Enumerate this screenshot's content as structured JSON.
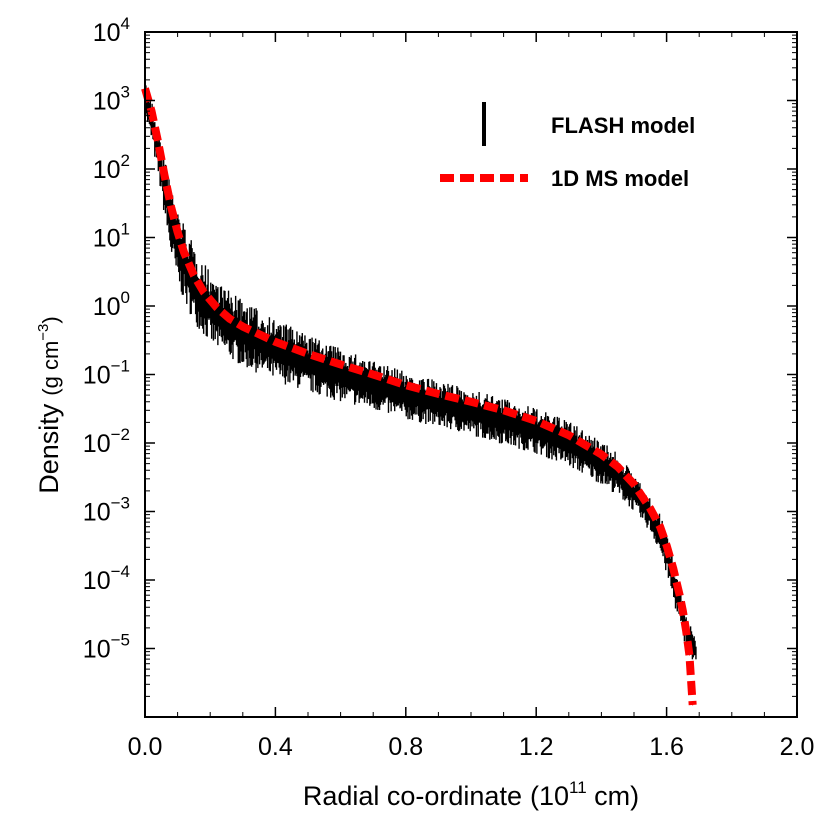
{
  "chart_data": {
    "type": "line",
    "title": "",
    "xlabel": "Radial co-ordinate",
    "xlabel_unit": "(10",
    "xlabel_unit_exp": "11",
    "xlabel_unit_tail": " cm)",
    "ylabel": "Density",
    "ylabel_unit": "(g cm",
    "ylabel_unit_exp": "−3",
    "ylabel_unit_tail": ")",
    "xlim": [
      0.0,
      2.0
    ],
    "ylim_log10": [
      -6,
      4
    ],
    "y_scale": "log",
    "grid": false,
    "legend_position": "top-right",
    "x_ticks": [
      {
        "value": 0.0,
        "label": "0.0"
      },
      {
        "value": 0.4,
        "label": "0.4"
      },
      {
        "value": 0.8,
        "label": "0.8"
      },
      {
        "value": 1.2,
        "label": "1.2"
      },
      {
        "value": 1.6,
        "label": "1.6"
      },
      {
        "value": 2.0,
        "label": "2.0"
      }
    ],
    "y_ticks": [
      {
        "exp": 4,
        "base": "10",
        "sup": "4"
      },
      {
        "exp": 3,
        "base": "10",
        "sup": "3"
      },
      {
        "exp": 2,
        "base": "10",
        "sup": "2"
      },
      {
        "exp": 1,
        "base": "10",
        "sup": "1"
      },
      {
        "exp": 0,
        "base": "10",
        "sup": "0"
      },
      {
        "exp": -1,
        "base": "10",
        "sup": "−1"
      },
      {
        "exp": -2,
        "base": "10",
        "sup": "−2"
      },
      {
        "exp": -3,
        "base": "10",
        "sup": "−3"
      },
      {
        "exp": -4,
        "base": "10",
        "sup": "−4"
      },
      {
        "exp": -5,
        "base": "10",
        "sup": "−5"
      }
    ],
    "series": [
      {
        "name": "FLASH model",
        "style": "vertical-scatter-band",
        "color": "#000000",
        "x": [
          0.0,
          0.02,
          0.04,
          0.06,
          0.08,
          0.1,
          0.13,
          0.16,
          0.2,
          0.25,
          0.3,
          0.4,
          0.5,
          0.6,
          0.7,
          0.8,
          0.9,
          1.0,
          1.1,
          1.2,
          1.3,
          1.4,
          1.45,
          1.5,
          1.55,
          1.58,
          1.6,
          1.62,
          1.64,
          1.66,
          1.68,
          1.69
        ],
        "y_low": [
          600,
          250,
          80,
          20,
          5,
          2,
          0.9,
          0.5,
          0.28,
          0.18,
          0.13,
          0.08,
          0.055,
          0.04,
          0.03,
          0.022,
          0.017,
          0.013,
          0.0095,
          0.007,
          0.0045,
          0.0025,
          0.0017,
          0.001,
          0.0005,
          0.00025,
          0.00012,
          5e-05,
          2.2e-05,
          1e-05,
          6e-06,
          6e-06
        ],
        "y_high": [
          2000,
          1000,
          400,
          150,
          60,
          28,
          12,
          6,
          3.2,
          1.8,
          1.2,
          0.65,
          0.38,
          0.24,
          0.16,
          0.11,
          0.08,
          0.06,
          0.045,
          0.032,
          0.021,
          0.011,
          0.007,
          0.0035,
          0.0016,
          0.0009,
          0.0005,
          0.00022,
          9e-05,
          3e-05,
          1.8e-05,
          1.4e-05
        ]
      },
      {
        "name": "1D MS model",
        "style": "dashed",
        "color": "#ff0000",
        "x": [
          0.0,
          0.02,
          0.04,
          0.06,
          0.08,
          0.1,
          0.12,
          0.15,
          0.18,
          0.22,
          0.26,
          0.3,
          0.4,
          0.5,
          0.6,
          0.7,
          0.8,
          0.9,
          1.0,
          1.1,
          1.2,
          1.3,
          1.4,
          1.45,
          1.5,
          1.55,
          1.58,
          1.6,
          1.62,
          1.64,
          1.65,
          1.66,
          1.67,
          1.68
        ],
        "y": [
          1500,
          700,
          250,
          80,
          28,
          12,
          6,
          2.8,
          1.6,
          0.95,
          0.65,
          0.5,
          0.3,
          0.2,
          0.14,
          0.1,
          0.07,
          0.052,
          0.04,
          0.03,
          0.021,
          0.013,
          0.0068,
          0.0045,
          0.0025,
          0.0011,
          0.0006,
          0.00032,
          0.00015,
          6e-05,
          3.5e-05,
          1.8e-05,
          8e-06,
          1.5e-06
        ]
      }
    ]
  }
}
